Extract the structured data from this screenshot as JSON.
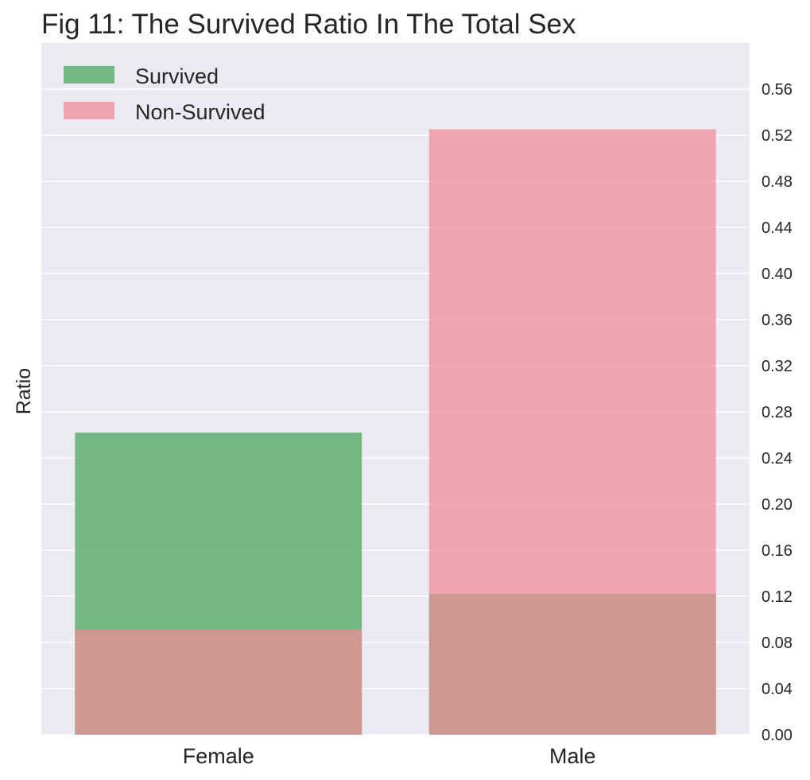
{
  "chart_data": {
    "type": "bar",
    "title": "Fig 11: The Survived Ratio In The Total Sex",
    "xlabel": "",
    "ylabel": "Ratio",
    "categories": [
      "Female",
      "Male"
    ],
    "series": [
      {
        "name": "Survived",
        "values": [
          0.262,
          0.122
        ],
        "color": "#55a868",
        "opacity": 0.78
      },
      {
        "name": "Non-Survived",
        "values": [
          0.091,
          0.525
        ],
        "color": "#f08a94",
        "opacity": 0.72
      }
    ],
    "ylim": [
      0,
      0.6
    ],
    "yticks": [
      "0.00",
      "0.04",
      "0.08",
      "0.12",
      "0.16",
      "0.20",
      "0.24",
      "0.28",
      "0.32",
      "0.36",
      "0.40",
      "0.44",
      "0.48",
      "0.52",
      "0.56"
    ],
    "y_axis_side": "right",
    "grid": true,
    "legend_position": "top-left",
    "background_color": "#eaeaf2",
    "grid_color": "#ffffff"
  }
}
